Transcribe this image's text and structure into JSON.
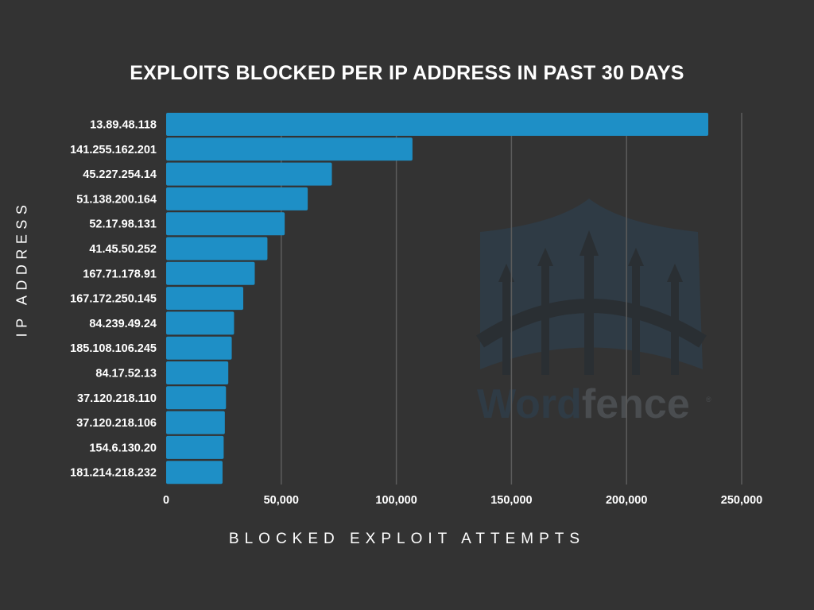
{
  "chart_data": {
    "type": "bar",
    "orientation": "horizontal",
    "title": "EXPLOITS BLOCKED PER IP ADDRESS IN PAST 30 DAYS",
    "xlabel": "BLOCKED EXPLOIT ATTEMPTS",
    "ylabel": "IP ADDRESS",
    "categories": [
      "13.89.48.118",
      "141.255.162.201",
      "45.227.254.14",
      "51.138.200.164",
      "52.17.98.131",
      "41.45.50.252",
      "167.71.178.91",
      "167.172.250.145",
      "84.239.49.24",
      "185.108.106.245",
      "84.17.52.13",
      "37.120.218.110",
      "37.120.218.106",
      "154.6.130.20",
      "181.214.218.232"
    ],
    "values": [
      235500,
      107000,
      72000,
      61500,
      51500,
      44000,
      38500,
      33500,
      29500,
      28500,
      27000,
      26000,
      25500,
      25000,
      24500
    ],
    "xlim": [
      0,
      250000
    ],
    "xticks": [
      0,
      50000,
      100000,
      150000,
      200000,
      250000
    ],
    "xtick_labels": [
      "0",
      "50,000",
      "100,000",
      "150,000",
      "200,000",
      "250,000"
    ],
    "grid": "vertical",
    "bar_color": "#1e8fc6"
  },
  "watermark": {
    "text_part1": "Word",
    "text_part2": "fence"
  }
}
